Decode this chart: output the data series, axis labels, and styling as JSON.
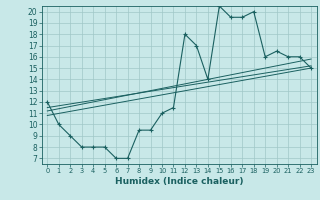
{
  "xlabel": "Humidex (Indice chaleur)",
  "bg_color": "#c8e8e8",
  "line_color": "#1a6060",
  "grid_color": "#a0c8c8",
  "xlim": [
    -0.5,
    23.5
  ],
  "ylim": [
    6.5,
    20.5
  ],
  "xticks": [
    0,
    1,
    2,
    3,
    4,
    5,
    6,
    7,
    8,
    9,
    10,
    11,
    12,
    13,
    14,
    15,
    16,
    17,
    18,
    19,
    20,
    21,
    22,
    23
  ],
  "yticks": [
    7,
    8,
    9,
    10,
    11,
    12,
    13,
    14,
    15,
    16,
    17,
    18,
    19,
    20
  ],
  "main_x": [
    0,
    1,
    2,
    3,
    4,
    5,
    6,
    7,
    8,
    9,
    10,
    11,
    12,
    13,
    14,
    15,
    16,
    17,
    18,
    19,
    20,
    21,
    22,
    23
  ],
  "main_y": [
    12,
    10,
    9,
    8,
    8,
    8,
    7,
    7,
    9.5,
    9.5,
    11,
    11.5,
    18,
    17,
    14,
    20.5,
    19.5,
    19.5,
    20,
    16,
    16.5,
    16,
    16,
    15
  ],
  "line1_x": [
    0,
    23
  ],
  "line1_y": [
    11.5,
    15.2
  ],
  "line2_x": [
    0,
    23
  ],
  "line2_y": [
    11.2,
    15.8
  ],
  "line3_x": [
    0,
    23
  ],
  "line3_y": [
    10.8,
    15.0
  ]
}
